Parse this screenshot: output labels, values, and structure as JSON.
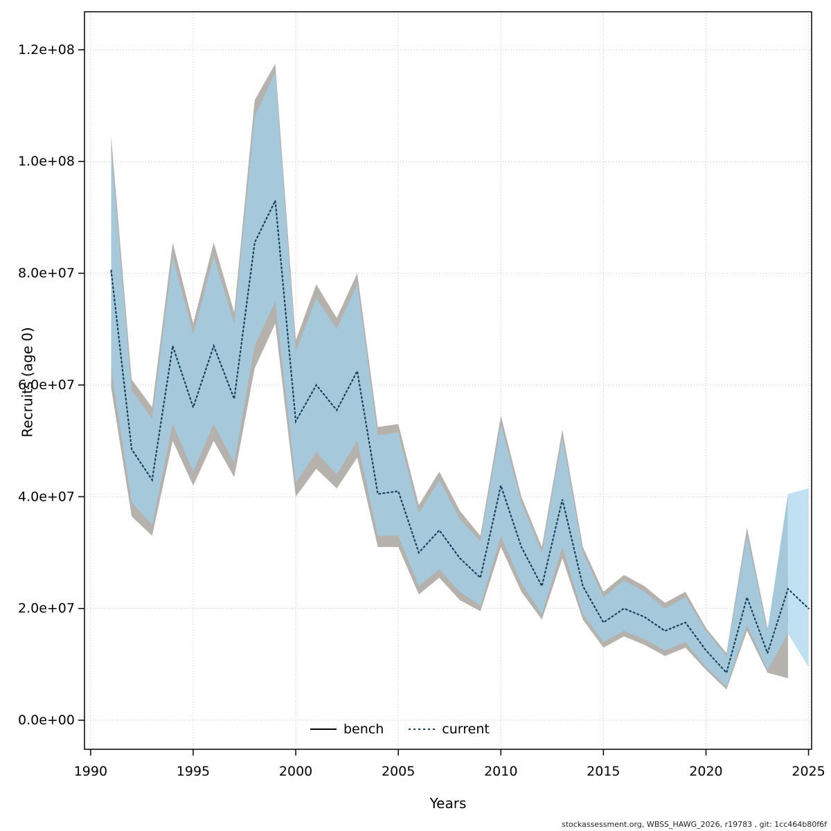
{
  "figure": {
    "footer": "stockassessment.org, WBSS_HAWG_2026, r19783 , git: 1cc464b80f6f"
  },
  "chart_data": {
    "type": "line",
    "title": "",
    "xlabel": "Years",
    "ylabel": "Recruits (age 0)",
    "x_ticks": [
      1990,
      1995,
      2000,
      2005,
      2010,
      2015,
      2020,
      2025
    ],
    "y_ticks": [
      0,
      20000000,
      40000000,
      60000000,
      80000000,
      100000000,
      120000000
    ],
    "y_tick_labels": [
      "0.0e+00",
      "2.0e+07",
      "4.0e+07",
      "6.0e+07",
      "8.0e+07",
      "1.0e+08",
      "1.2e+08"
    ],
    "xlim": [
      1989.7,
      2025.15
    ],
    "ylim": [
      -5200000,
      126800000
    ],
    "grid": true,
    "grid_color": "#c4c4c4",
    "value_scale": 10000000,
    "legend": {
      "position": "bottom-center",
      "entries": [
        {
          "label": "bench",
          "style": "solid",
          "color": "#000000"
        },
        {
          "label": "current",
          "style": "dotted",
          "color": "#16425c"
        }
      ]
    },
    "series": [
      {
        "name": "bench",
        "line_style": "solid",
        "line_color": "#000000",
        "band_color": "#b5b1ac",
        "years": [
          1991,
          1992,
          1993,
          1994,
          1995,
          1996,
          1997,
          1998,
          1999,
          2000,
          2001,
          2002,
          2003,
          2004,
          2005,
          2006,
          2007,
          2008,
          2009,
          2010,
          2011,
          2012,
          2013,
          2014,
          2015,
          2016,
          2017,
          2018,
          2019,
          2020,
          2021,
          2022,
          2023,
          2024
        ],
        "mean": [
          8.05,
          4.85,
          4.3,
          6.7,
          5.6,
          6.7,
          5.75,
          8.55,
          9.3,
          5.35,
          6.0,
          5.55,
          6.25,
          4.05,
          4.1,
          3.0,
          3.4,
          2.9,
          2.55,
          4.2,
          3.1,
          2.4,
          3.95,
          2.4,
          1.75,
          2.0,
          1.85,
          1.6,
          1.75,
          1.25,
          0.85,
          2.2,
          1.2,
          1.8
        ],
        "lo": [
          5.95,
          3.65,
          3.3,
          5.0,
          4.2,
          5.0,
          4.35,
          6.3,
          7.1,
          4.0,
          4.5,
          4.15,
          4.7,
          3.1,
          3.1,
          2.25,
          2.55,
          2.15,
          1.95,
          3.1,
          2.3,
          1.8,
          2.9,
          1.8,
          1.3,
          1.5,
          1.35,
          1.15,
          1.3,
          0.9,
          0.55,
          1.6,
          0.85,
          0.75
        ],
        "hi": [
          10.45,
          6.1,
          5.6,
          8.55,
          7.1,
          8.55,
          7.3,
          11.1,
          11.75,
          6.8,
          7.8,
          7.2,
          8.0,
          5.25,
          5.3,
          3.85,
          4.45,
          3.75,
          3.3,
          5.45,
          4.0,
          3.1,
          5.2,
          3.1,
          2.3,
          2.6,
          2.4,
          2.1,
          2.3,
          1.65,
          1.2,
          3.45,
          1.65,
          2.6
        ]
      },
      {
        "name": "current",
        "line_style": "dotted",
        "line_color": "#16425c",
        "band_color": "#a5c8da",
        "forecast_band_color": "#bfe1f2",
        "forecast_start_year": 2024,
        "years": [
          1991,
          1992,
          1993,
          1994,
          1995,
          1996,
          1997,
          1998,
          1999,
          2000,
          2001,
          2002,
          2003,
          2004,
          2005,
          2006,
          2007,
          2008,
          2009,
          2010,
          2011,
          2012,
          2013,
          2014,
          2015,
          2016,
          2017,
          2018,
          2019,
          2020,
          2021,
          2022,
          2023,
          2024,
          2025
        ],
        "mean": [
          8.05,
          4.85,
          4.3,
          6.7,
          5.6,
          6.7,
          5.75,
          8.55,
          9.3,
          5.35,
          6.0,
          5.55,
          6.25,
          4.05,
          4.1,
          3.0,
          3.4,
          2.9,
          2.55,
          4.2,
          3.1,
          2.4,
          3.95,
          2.4,
          1.75,
          2.0,
          1.85,
          1.6,
          1.75,
          1.25,
          0.85,
          2.2,
          1.2,
          2.35,
          2.0
        ],
        "lo": [
          6.3,
          3.9,
          3.5,
          5.3,
          4.45,
          5.3,
          4.6,
          6.7,
          7.5,
          4.25,
          4.8,
          4.4,
          5.0,
          3.3,
          3.3,
          2.4,
          2.7,
          2.3,
          2.05,
          3.3,
          2.45,
          1.9,
          3.1,
          1.9,
          1.4,
          1.6,
          1.45,
          1.25,
          1.4,
          0.95,
          0.6,
          1.7,
          0.9,
          1.55,
          0.95
        ],
        "hi": [
          10.2,
          5.9,
          5.4,
          8.3,
          6.9,
          8.3,
          7.1,
          10.8,
          11.6,
          6.6,
          7.55,
          7.0,
          7.8,
          5.1,
          5.15,
          3.7,
          4.3,
          3.6,
          3.2,
          5.3,
          3.9,
          3.0,
          5.05,
          3.0,
          2.2,
          2.5,
          2.3,
          2.0,
          2.2,
          1.6,
          1.15,
          3.3,
          1.6,
          4.05,
          4.15
        ]
      }
    ]
  }
}
